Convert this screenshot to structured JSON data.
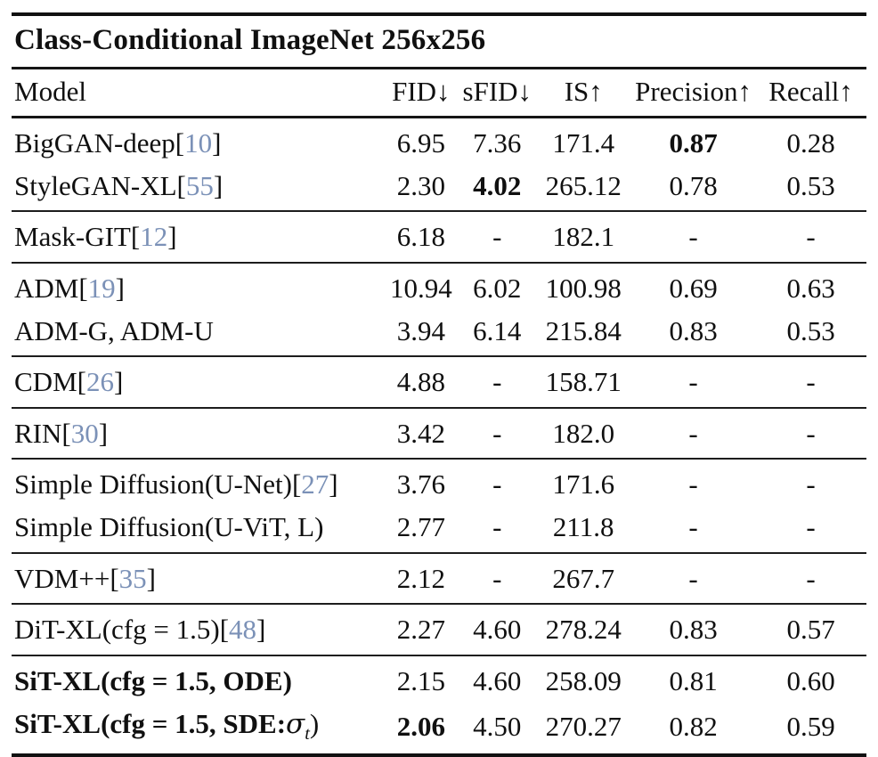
{
  "table": {
    "title": "Class-Conditional ImageNet 256x256",
    "columns": [
      "Model",
      "FID↓",
      "sFID↓",
      "IS↑",
      "Precision↑",
      "Recall↑"
    ],
    "cite_color": "#7b91b7",
    "rows": [
      {
        "name": "BigGAN-deep",
        "cite_open": "[",
        "cite": "10",
        "cite_close": "]",
        "fid": "6.95",
        "sfid": "7.36",
        "is": "171.4",
        "prec": "0.87",
        "recall": "0.28"
      },
      {
        "name": "StyleGAN-XL",
        "cite_open": "[",
        "cite": "55",
        "cite_close": "]",
        "fid": "2.30",
        "sfid": "4.02",
        "is": "265.12",
        "prec": "0.78",
        "recall": "0.53"
      },
      {
        "name": "Mask-GIT",
        "cite_open": "[",
        "cite": "12",
        "cite_close": "]",
        "fid": "6.18",
        "sfid": "-",
        "is": "182.1",
        "prec": "-",
        "recall": "-"
      },
      {
        "name": "ADM",
        "cite_open": "[",
        "cite": "19",
        "cite_close": "]",
        "fid": "10.94",
        "sfid": "6.02",
        "is": "100.98",
        "prec": "0.69",
        "recall": "0.63"
      },
      {
        "name": "ADM-G, ADM-U",
        "fid": "3.94",
        "sfid": "6.14",
        "is": "215.84",
        "prec": "0.83",
        "recall": "0.53"
      },
      {
        "name": "CDM",
        "cite_open": "[",
        "cite": "26",
        "cite_close": "]",
        "fid": "4.88",
        "sfid": "-",
        "is": "158.71",
        "prec": "-",
        "recall": "-"
      },
      {
        "name": "RIN",
        "cite_open": "[",
        "cite": "30",
        "cite_close": "]",
        "fid": "3.42",
        "sfid": "-",
        "is": "182.0",
        "prec": "-",
        "recall": "-"
      },
      {
        "name": "Simple Diffusion(U-Net)",
        "cite_open": "[",
        "cite": "27",
        "cite_close": "]",
        "fid": "3.76",
        "sfid": "-",
        "is": "171.6",
        "prec": "-",
        "recall": "-"
      },
      {
        "name": "Simple Diffusion(U-ViT, L)",
        "fid": "2.77",
        "sfid": "-",
        "is": "211.8",
        "prec": "-",
        "recall": "-"
      },
      {
        "name": "VDM++",
        "cite_open": "[",
        "cite": "35",
        "cite_close": "]",
        "fid": "2.12",
        "sfid": "-",
        "is": "267.7",
        "prec": "-",
        "recall": "-"
      },
      {
        "name": "DiT-XL(cfg = 1.5)",
        "cite_open": "[",
        "cite": "48",
        "cite_close": "]",
        "fid": "2.27",
        "sfid": "4.60",
        "is": "278.24",
        "prec": "0.83",
        "recall": "0.57"
      },
      {
        "name": "SiT-XL(cfg = 1.5, ODE)",
        "fid": "2.15",
        "sfid": "4.60",
        "is": "258.09",
        "prec": "0.81",
        "recall": "0.60"
      },
      {
        "name": "SiT-XL(cfg = 1.5, SDE:",
        "math": "σ",
        "math_sub": "t",
        "name_end": ")",
        "fid": "2.06",
        "sfid": "4.50",
        "is": "270.27",
        "prec": "0.82",
        "recall": "0.59"
      }
    ]
  }
}
